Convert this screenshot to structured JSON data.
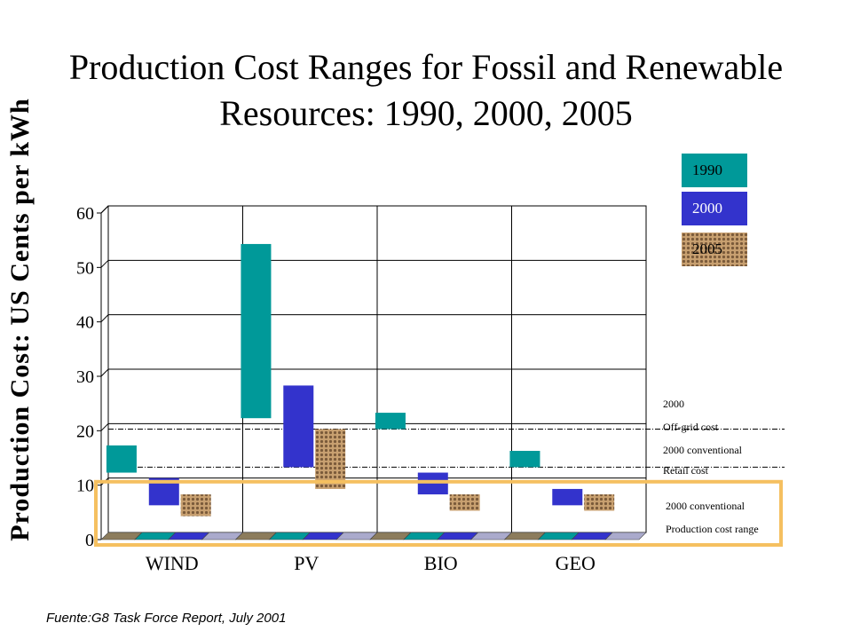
{
  "chart_data": {
    "type": "bar",
    "title_line1": "Production Cost Ranges for Fossil and Renewable",
    "title_line2": "Resources: 1990, 2000, 2005",
    "ylabel": "Production Cost: US Cents per kWh",
    "ylim": [
      0,
      60
    ],
    "yticks": [
      "0",
      "10",
      "20",
      "30",
      "40",
      "50",
      "60"
    ],
    "categories": [
      "WIND",
      "PV",
      "BIO",
      "GEO"
    ],
    "series": [
      {
        "name": "1990",
        "color": "#009999",
        "ranges": [
          [
            11,
            16
          ],
          [
            21,
            53
          ],
          [
            19,
            22
          ],
          [
            12,
            15
          ]
        ]
      },
      {
        "name": "2000",
        "color": "#3333cc",
        "ranges": [
          [
            5,
            10
          ],
          [
            12,
            27
          ],
          [
            7,
            11
          ],
          [
            5,
            8
          ]
        ]
      },
      {
        "name": "2005",
        "color": "#b08858",
        "ranges": [
          [
            3,
            7
          ],
          [
            8,
            19
          ],
          [
            4,
            7
          ],
          [
            4,
            7
          ]
        ]
      }
    ],
    "reference_lines": [
      {
        "value": 19,
        "label_top": "2000",
        "label": "Off-grid cost"
      },
      {
        "value": 12,
        "label_top": "2000 conventional",
        "label": "Retail cost"
      }
    ],
    "highlight_band": {
      "range": [
        0,
        9
      ],
      "label_line1": "2000 conventional",
      "label_line2": "Production cost range",
      "color": "#f5c060"
    },
    "grid": true,
    "legend_position": "top-right"
  },
  "source": "Fuente:G8 Task Force Report, July 2001"
}
